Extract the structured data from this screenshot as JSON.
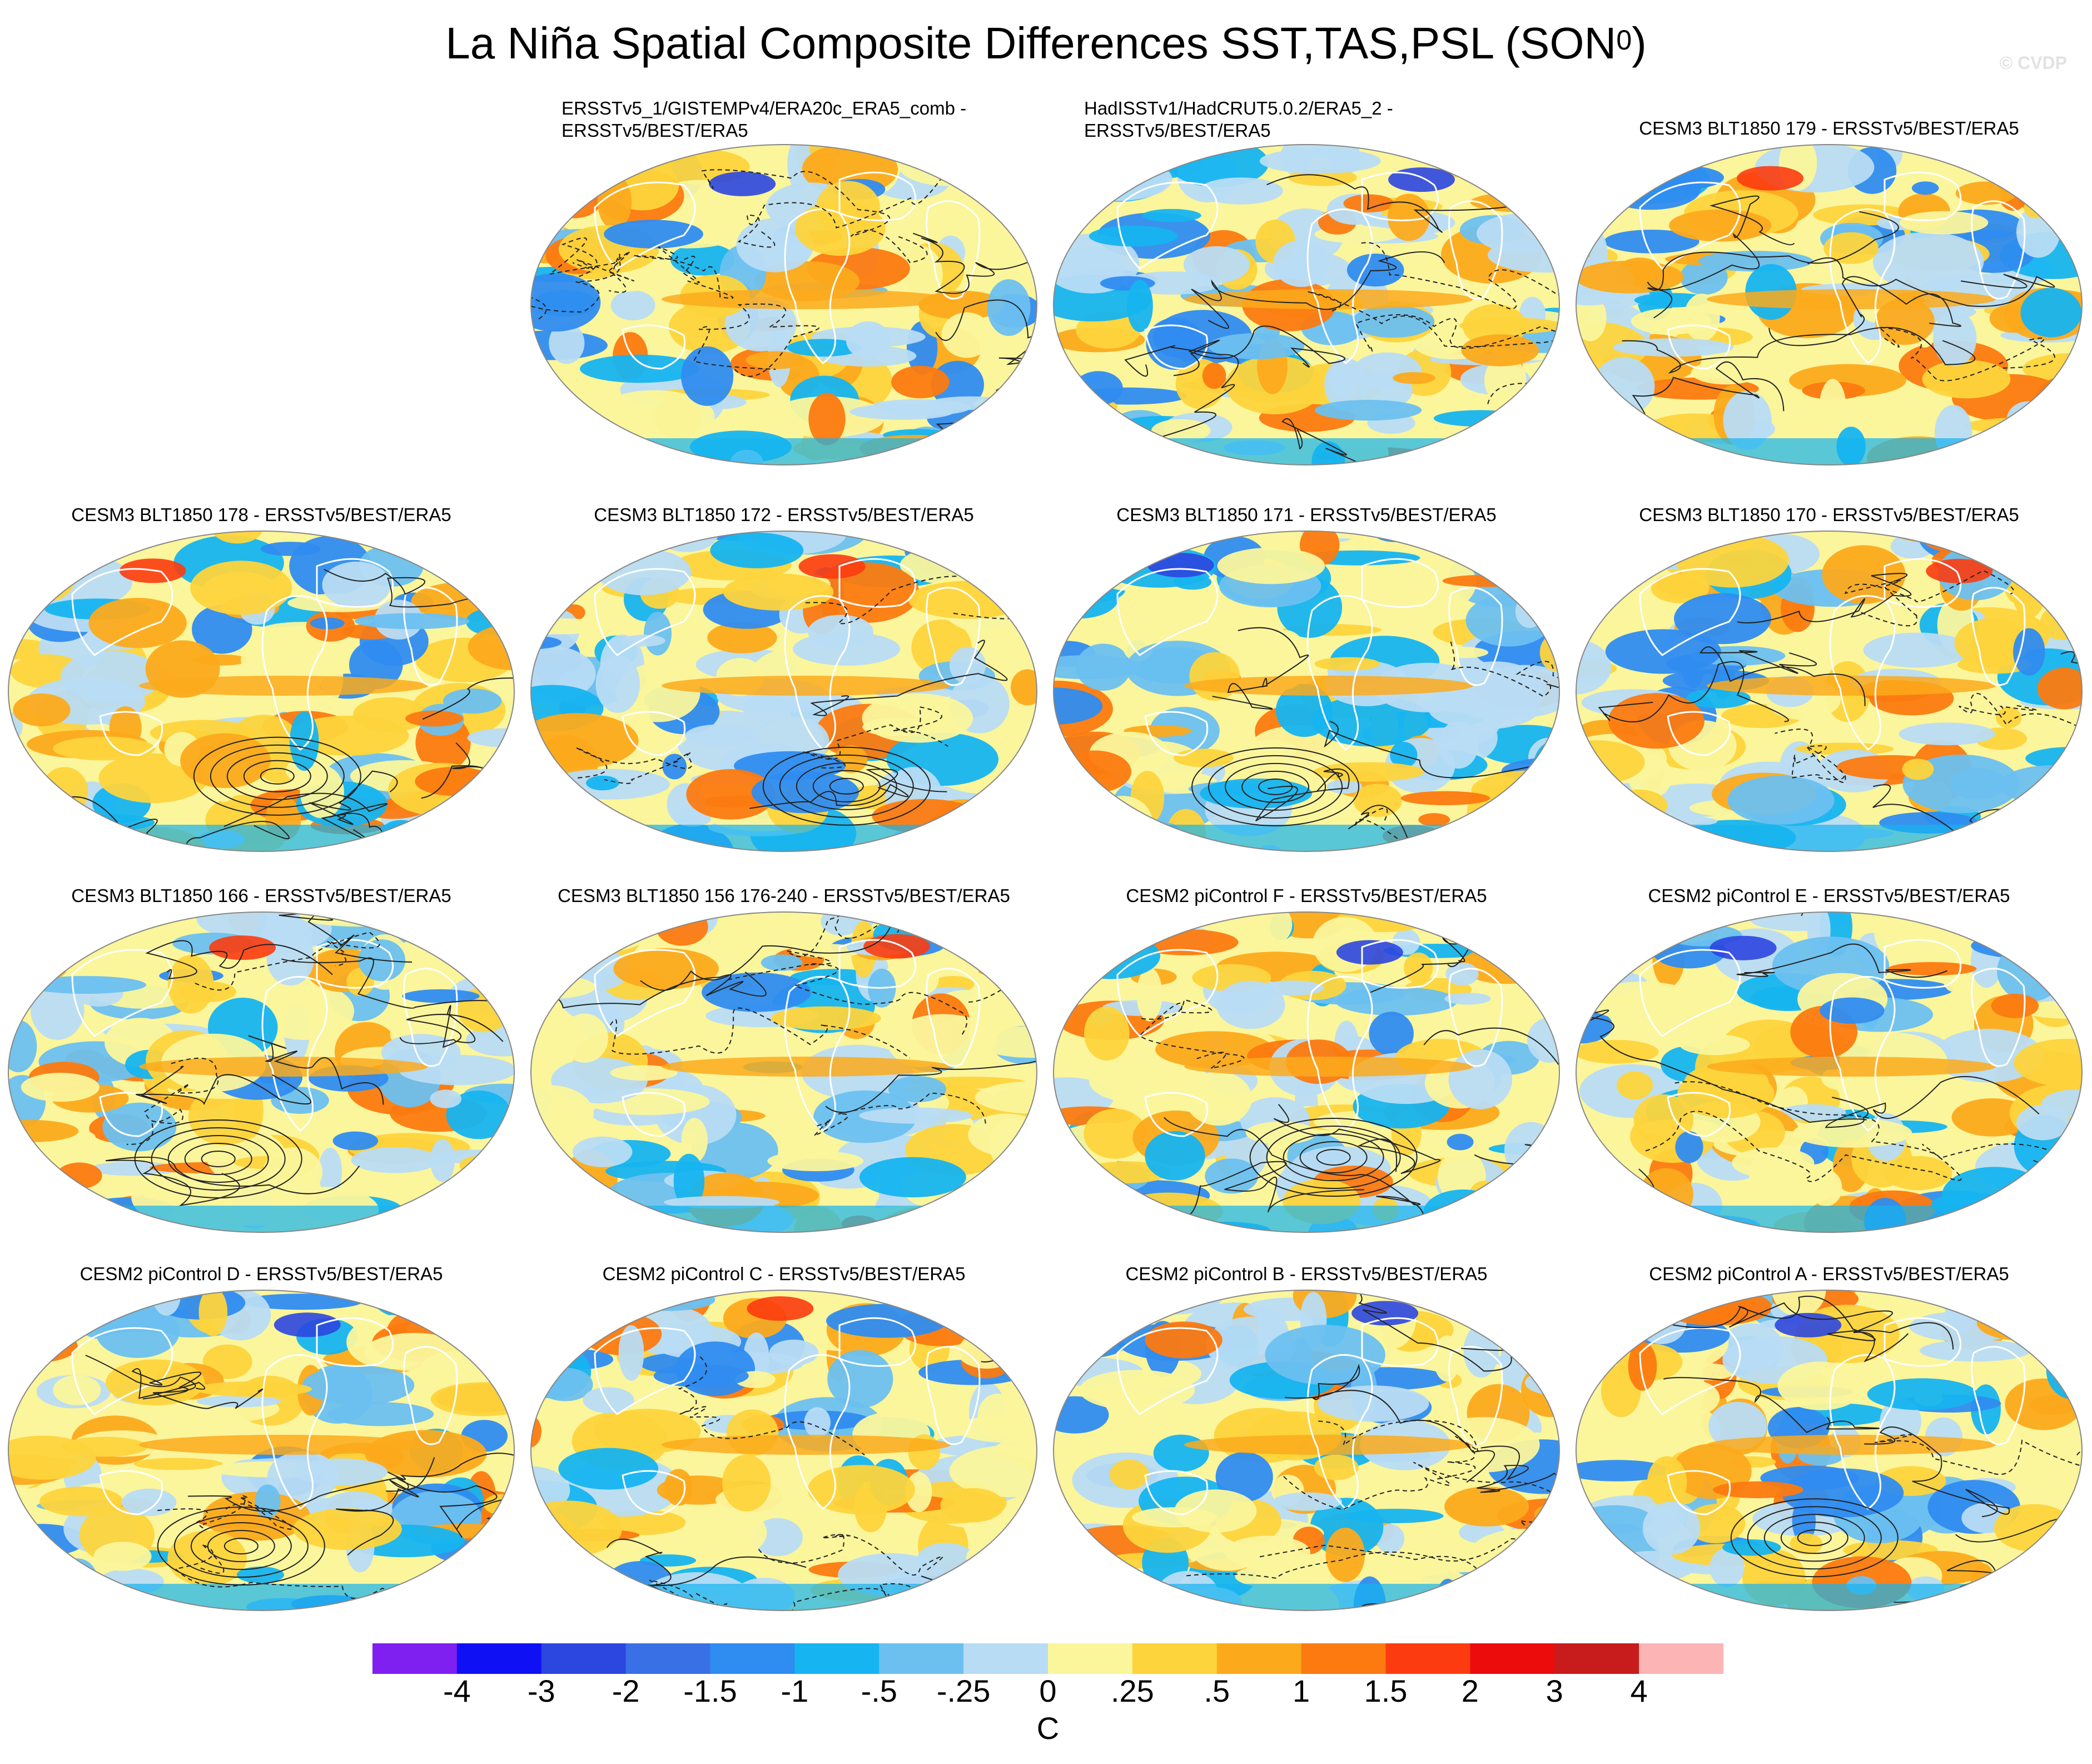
{
  "title": {
    "main": "La Niña Spatial Composite Differences SST,TAS,PSL (SON",
    "sup": "0",
    "close": ")"
  },
  "watermark": "© CVDP",
  "panels": [
    {
      "line1": "ERSSTv5_1/GISTEMPv4/ERA20c_ERA5_comb -",
      "line2": "ERSSTv5/BEST/ERA5",
      "seed": 11,
      "ring": 0
    },
    {
      "line1": "HadISSTv1/HadCRUT5.0.2/ERA5_2 -",
      "line2": "ERSSTv5/BEST/ERA5",
      "seed": 23,
      "ring": 0
    },
    {
      "line1": "CESM3 BLT1850 179 - ERSSTv5/BEST/ERA5",
      "line2": "",
      "seed": 37,
      "ring": 0
    },
    {
      "line1": "CESM3 BLT1850 178 - ERSSTv5/BEST/ERA5",
      "line2": "",
      "seed": 41,
      "ring": 1
    },
    {
      "line1": "CESM3 BLT1850 172 - ERSSTv5/BEST/ERA5",
      "line2": "",
      "seed": 53,
      "ring": 1
    },
    {
      "line1": "CESM3 BLT1850 171 - ERSSTv5/BEST/ERA5",
      "line2": "",
      "seed": 67,
      "ring": 1
    },
    {
      "line1": "CESM3 BLT1850 170 - ERSSTv5/BEST/ERA5",
      "line2": "",
      "seed": 71,
      "ring": 0
    },
    {
      "line1": "CESM3 BLT1850 166 - ERSSTv5/BEST/ERA5",
      "line2": "",
      "seed": 83,
      "ring": 1
    },
    {
      "line1": "CESM3 BLT1850 156 176-240 - ERSSTv5/BEST/ERA5",
      "line2": "",
      "seed": 97,
      "ring": 0
    },
    {
      "line1": "CESM2 piControl F - ERSSTv5/BEST/ERA5",
      "line2": "",
      "seed": 101,
      "ring": 1
    },
    {
      "line1": "CESM2 piControl E - ERSSTv5/BEST/ERA5",
      "line2": "",
      "seed": 113,
      "ring": 0
    },
    {
      "line1": "CESM2 piControl D - ERSSTv5/BEST/ERA5",
      "line2": "",
      "seed": 127,
      "ring": 1
    },
    {
      "line1": "CESM2 piControl C - ERSSTv5/BEST/ERA5",
      "line2": "",
      "seed": 131,
      "ring": 0
    },
    {
      "line1": "CESM2 piControl B - ERSSTv5/BEST/ERA5",
      "line2": "",
      "seed": 149,
      "ring": 0
    },
    {
      "line1": "CESM2 piControl A - ERSSTv5/BEST/ERA5",
      "line2": "",
      "seed": 157,
      "ring": 1
    }
  ],
  "chart_data": {
    "type": "heatmap",
    "projection": "Robinson-like global maps, Pacific-centered",
    "fields": [
      "SST",
      "TAS",
      "PSL"
    ],
    "season": "SON0",
    "contours": "PSL difference (solid positive, dashed negative)",
    "colorbar": {
      "unit": "C",
      "levels": [
        "-4",
        "-3",
        "-2",
        "-1.5",
        "-1",
        "-.5",
        "-.25",
        "0",
        ".25",
        ".5",
        "1",
        "1.5",
        "2",
        "3",
        "4"
      ],
      "colors": [
        "#7f1ff0",
        "#1010f4",
        "#2c46e0",
        "#3a70e6",
        "#2f8cf0",
        "#16b4f0",
        "#6cc0f0",
        "#b8dcf4",
        "#fbf59c",
        "#fdd43c",
        "#fcaa1c",
        "#fc7a10",
        "#fc3c10",
        "#ec0c0c",
        "#c81c1c",
        "#fcb4b4"
      ]
    }
  }
}
